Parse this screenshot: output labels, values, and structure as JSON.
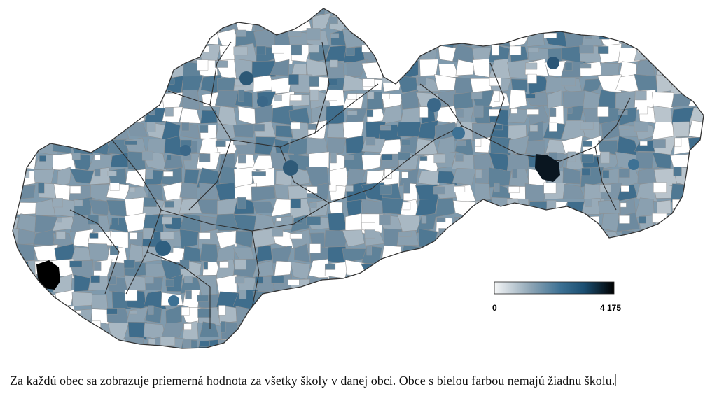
{
  "legend": {
    "min_label": "0",
    "max_label": "4 175",
    "gradient_colors": [
      "#f4f5f6",
      "#8fa6b6",
      "#3d7194",
      "#1b4f72",
      "#000000"
    ]
  },
  "caption": {
    "text": "Za každú obec sa zobrazuje priemerná hodnota za všetky školy v danej obci. Obce s bielou farbou nemajú žiadnu školu."
  },
  "colors": {
    "no_school": "#ffffff",
    "low": "#a3b3bf",
    "mid": "#5f8299",
    "high": "#2f5f80",
    "max": "#000000",
    "border": "#333333"
  }
}
